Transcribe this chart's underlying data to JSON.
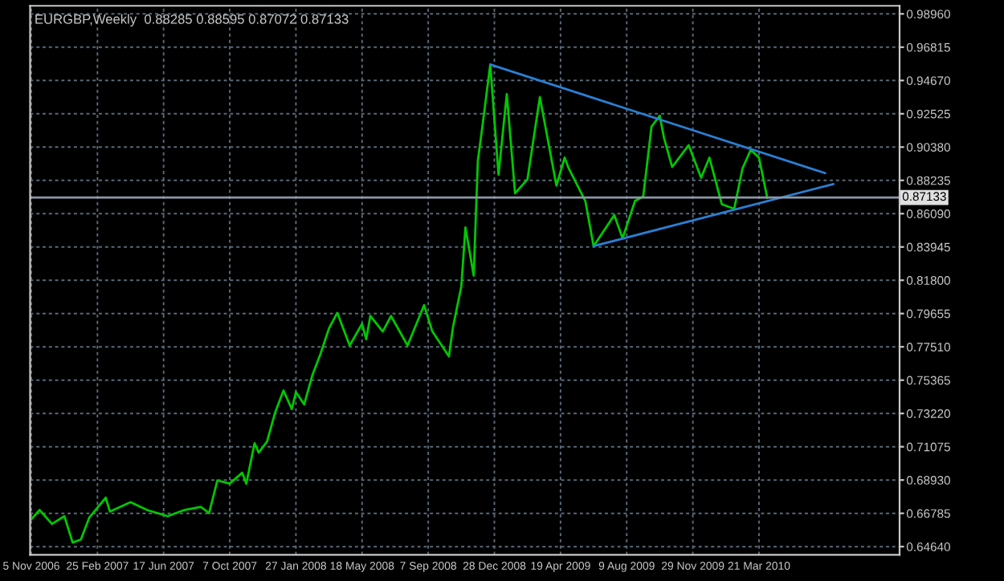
{
  "chart_data": {
    "type": "line",
    "title": "EURGBP,Weekly  0.88285 0.88595 0.87072 0.87133",
    "x": [
      "2006-11-05",
      "2006-11-19",
      "2006-12-10",
      "2006-12-31",
      "2007-01-14",
      "2007-01-28",
      "2007-02-11",
      "2007-03-11",
      "2007-03-18",
      "2007-04-22",
      "2007-05-20",
      "2007-06-24",
      "2007-07-22",
      "2007-08-19",
      "2007-09-02",
      "2007-09-16",
      "2007-10-07",
      "2007-10-28",
      "2007-11-04",
      "2007-11-18",
      "2007-11-25",
      "2007-12-09",
      "2007-12-23",
      "2008-01-06",
      "2008-01-20",
      "2008-01-27",
      "2008-02-10",
      "2008-02-24",
      "2008-03-09",
      "2008-03-23",
      "2008-04-06",
      "2008-04-27",
      "2008-05-18",
      "2008-05-25",
      "2008-06-01",
      "2008-06-22",
      "2008-07-06",
      "2008-08-03",
      "2008-08-31",
      "2008-09-14",
      "2008-10-05",
      "2008-10-12",
      "2008-10-19",
      "2008-11-02",
      "2008-11-09",
      "2008-11-23",
      "2008-11-30",
      "2008-12-07",
      "2008-12-21",
      "2009-01-04",
      "2009-01-18",
      "2009-02-01",
      "2009-02-22",
      "2009-03-15",
      "2009-04-12",
      "2009-04-26",
      "2009-05-03",
      "2009-05-31",
      "2009-06-14",
      "2009-07-19",
      "2009-08-02",
      "2009-08-23",
      "2009-09-06",
      "2009-09-20",
      "2009-10-04",
      "2009-10-11",
      "2009-10-25",
      "2009-11-22",
      "2009-12-13",
      "2009-12-27",
      "2010-01-17",
      "2010-02-07",
      "2010-02-21",
      "2010-03-07",
      "2010-03-21",
      "2010-04-04"
    ],
    "series": [
      {
        "color": "#00c800",
        "values": [
          0.664,
          0.67,
          0.661,
          0.666,
          0.649,
          0.651,
          0.665,
          0.678,
          0.669,
          0.675,
          0.67,
          0.666,
          0.67,
          0.672,
          0.668,
          0.689,
          0.687,
          0.694,
          0.687,
          0.713,
          0.707,
          0.714,
          0.733,
          0.747,
          0.735,
          0.746,
          0.738,
          0.757,
          0.771,
          0.787,
          0.797,
          0.776,
          0.79,
          0.78,
          0.795,
          0.785,
          0.795,
          0.776,
          0.802,
          0.785,
          0.773,
          0.769,
          0.788,
          0.814,
          0.852,
          0.821,
          0.895,
          0.915,
          0.957,
          0.886,
          0.938,
          0.874,
          0.883,
          0.936,
          0.879,
          0.897,
          0.89,
          0.869,
          0.84,
          0.86,
          0.845,
          0.869,
          0.872,
          0.917,
          0.924,
          0.91,
          0.891,
          0.905,
          0.884,
          0.897,
          0.867,
          0.864,
          0.89,
          0.902,
          0.897,
          0.871
        ]
      },
      {
        "type": "line",
        "color": "#2a7fd4",
        "x": [
          "2008-12-21",
          "2010-07-11"
        ],
        "values": [
          0.957,
          0.887
        ]
      },
      {
        "type": "line",
        "color": "#2a7fd4",
        "x": [
          "2009-06-14",
          "2010-07-25"
        ],
        "values": [
          0.84,
          0.88
        ]
      }
    ],
    "xlim": [
      "2006-11-03",
      "2010-11-14"
    ],
    "xticks": [
      {
        "value": "2006-11-05",
        "label": "5 Nov 2006"
      },
      {
        "value": "2007-02-25",
        "label": "25 Feb 2007"
      },
      {
        "value": "2007-06-17",
        "label": "17 Jun 2007"
      },
      {
        "value": "2007-10-07",
        "label": "7 Oct 2007"
      },
      {
        "value": "2008-01-27",
        "label": "27 Jan 2008"
      },
      {
        "value": "2008-05-18",
        "label": "18 May 2008"
      },
      {
        "value": "2008-09-07",
        "label": "7 Sep 2008"
      },
      {
        "value": "2008-12-28",
        "label": "28 Dec 2008"
      },
      {
        "value": "2009-04-19",
        "label": "19 Apr 2009"
      },
      {
        "value": "2009-08-09",
        "label": "9 Aug 2009"
      },
      {
        "value": "2009-11-29",
        "label": "29 Nov 2009"
      },
      {
        "value": "2010-03-21",
        "label": "21 Mar 2010"
      }
    ],
    "ylim": [
      0.6411,
      0.9948
    ],
    "yticks": [
      {
        "value": 0.9896,
        "label": "0.98960"
      },
      {
        "value": 0.96815,
        "label": "0.96815"
      },
      {
        "value": 0.9467,
        "label": "0.94670"
      },
      {
        "value": 0.92525,
        "label": "0.92525"
      },
      {
        "value": 0.9038,
        "label": "0.90380"
      },
      {
        "value": 0.88235,
        "label": "0.88235"
      },
      {
        "value": 0.8609,
        "label": "0.86090"
      },
      {
        "value": 0.83945,
        "label": "0.83945"
      },
      {
        "value": 0.818,
        "label": "0.81800"
      },
      {
        "value": 0.79655,
        "label": "0.79655"
      },
      {
        "value": 0.7751,
        "label": "0.77510"
      },
      {
        "value": 0.75365,
        "label": "0.75365"
      },
      {
        "value": 0.7322,
        "label": "0.73220"
      },
      {
        "value": 0.71075,
        "label": "0.71075"
      },
      {
        "value": 0.6893,
        "label": "0.68930"
      },
      {
        "value": 0.66785,
        "label": "0.66785"
      },
      {
        "value": 0.6464,
        "label": "0.64640"
      }
    ],
    "ref_lines": [
      {
        "axis": "y",
        "value": 0.87133,
        "label": "0.87133",
        "color": "#8a98a6"
      }
    ],
    "grid": true,
    "line_style": "solid",
    "marker": "none"
  }
}
